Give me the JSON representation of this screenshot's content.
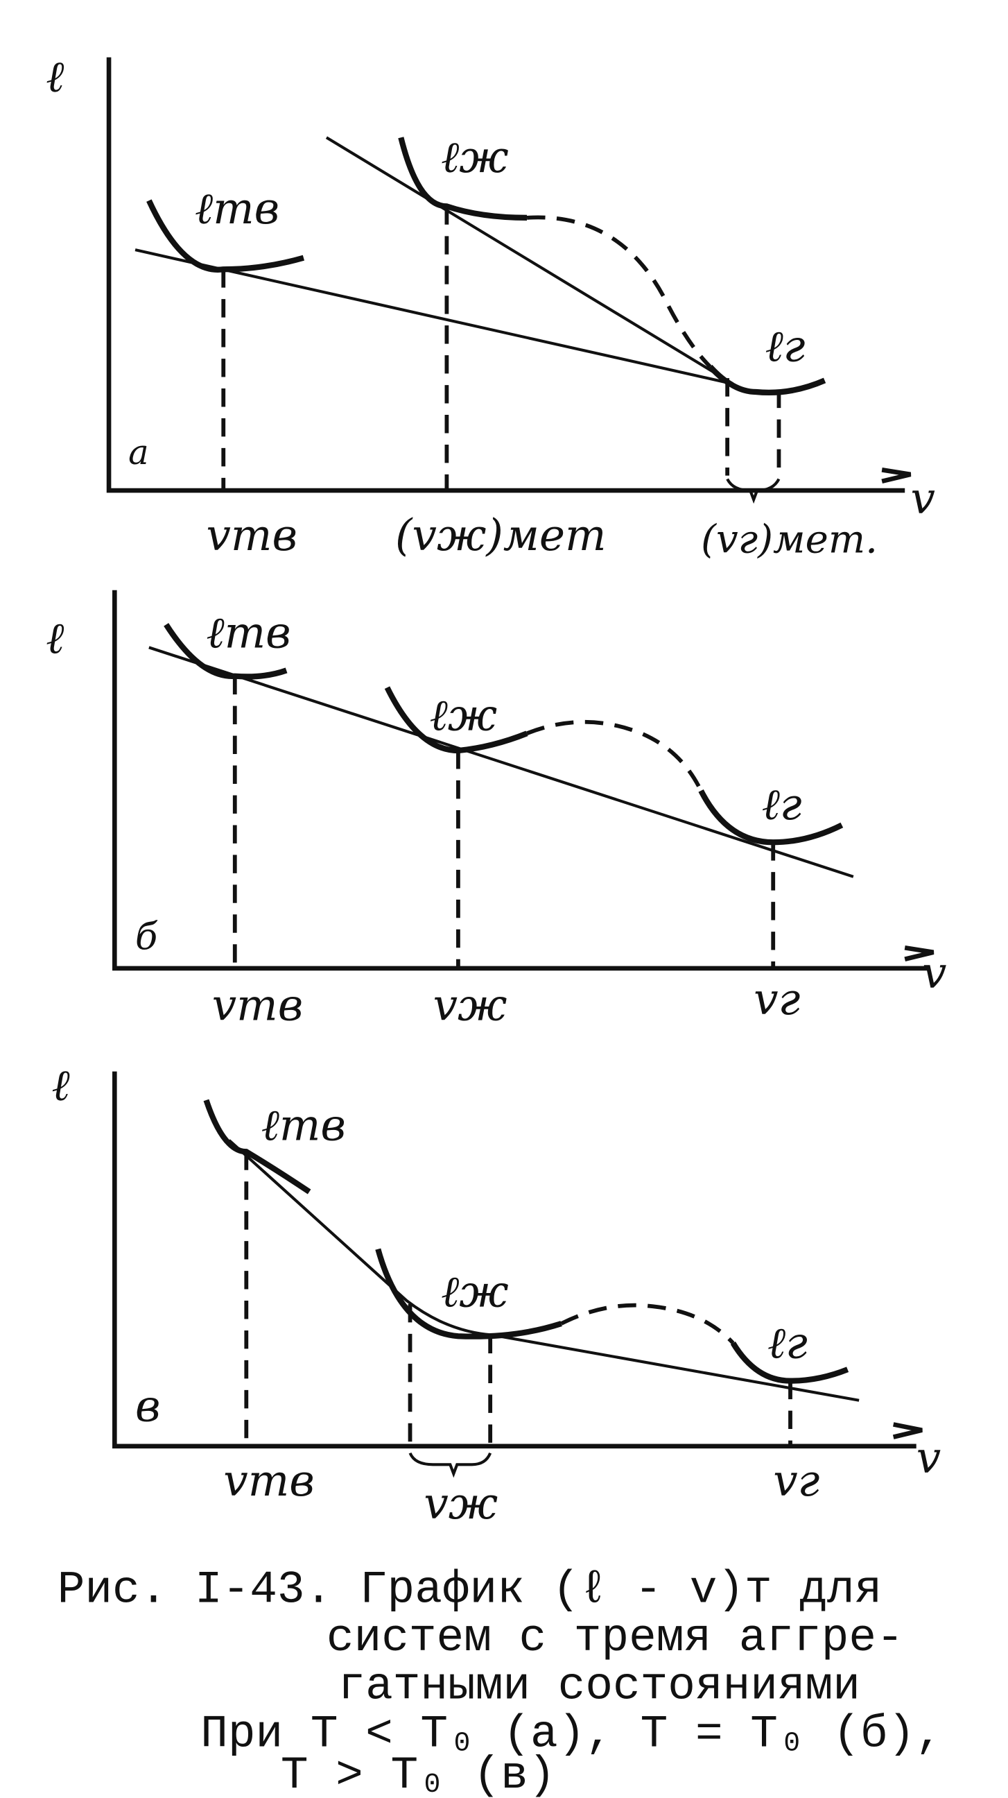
{
  "panels": [
    {
      "letter": "а",
      "y_axis": "ℓ",
      "x_axis": "v",
      "curves": [
        "ℓтв",
        "ℓж",
        "ℓг"
      ],
      "x_labels": [
        "vтв",
        "(vж)мет",
        "(vг)мет."
      ]
    },
    {
      "letter": "б",
      "y_axis": "ℓ",
      "x_axis": "v",
      "curves": [
        "ℓтв",
        "ℓж",
        "ℓг"
      ],
      "x_labels": [
        "vтв",
        "vж",
        "vг"
      ]
    },
    {
      "letter": "в",
      "y_axis": "ℓ",
      "x_axis": "v",
      "curves": [
        "ℓтв",
        "ℓж",
        "ℓг"
      ],
      "x_labels": [
        "vтв",
        "vж",
        "vг"
      ]
    }
  ],
  "caption": {
    "lines": [
      "Рис. I-43. График (ℓ - v)т для",
      "систем с тремя аггре-",
      "гатными состояниями",
      "При T < T₀ (а), T = T₀ (б),",
      "T > T₀ (в)"
    ]
  }
}
